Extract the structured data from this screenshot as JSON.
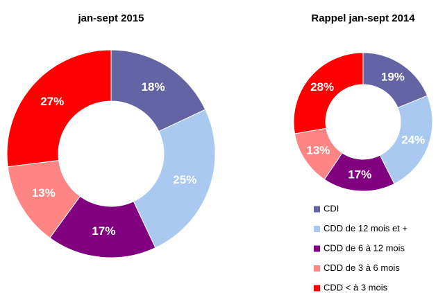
{
  "chart_data": [
    {
      "type": "donut",
      "title": "jan-sept 2015",
      "categories": [
        "CDI",
        "CDD de 12 mois et +",
        "CDD de 6 à 12 mois",
        "CDD de 3 à 6 mois",
        "CDD < à 3 mois"
      ],
      "values": [
        18,
        25,
        17,
        13,
        27
      ],
      "value_labels": [
        "18%",
        "25%",
        "17%",
        "13%",
        "27%"
      ],
      "colors": [
        "#6464a4",
        "#a9c9f0",
        "#800080",
        "#ff8585",
        "#ff0000"
      ]
    },
    {
      "type": "donut",
      "title": "Rappel jan-sept 2014",
      "categories": [
        "CDI",
        "CDD de 12 mois et +",
        "CDD de 6 à 12 mois",
        "CDD de 3 à 6 mois",
        "CDD < à 3 mois"
      ],
      "values": [
        19,
        24,
        17,
        13,
        28
      ],
      "value_labels": [
        "19%",
        "24%",
        "17%",
        "13%",
        "28%"
      ],
      "colors": [
        "#6464a4",
        "#a9c9f0",
        "#800080",
        "#ff8585",
        "#ff0000"
      ],
      "legend": true
    }
  ]
}
